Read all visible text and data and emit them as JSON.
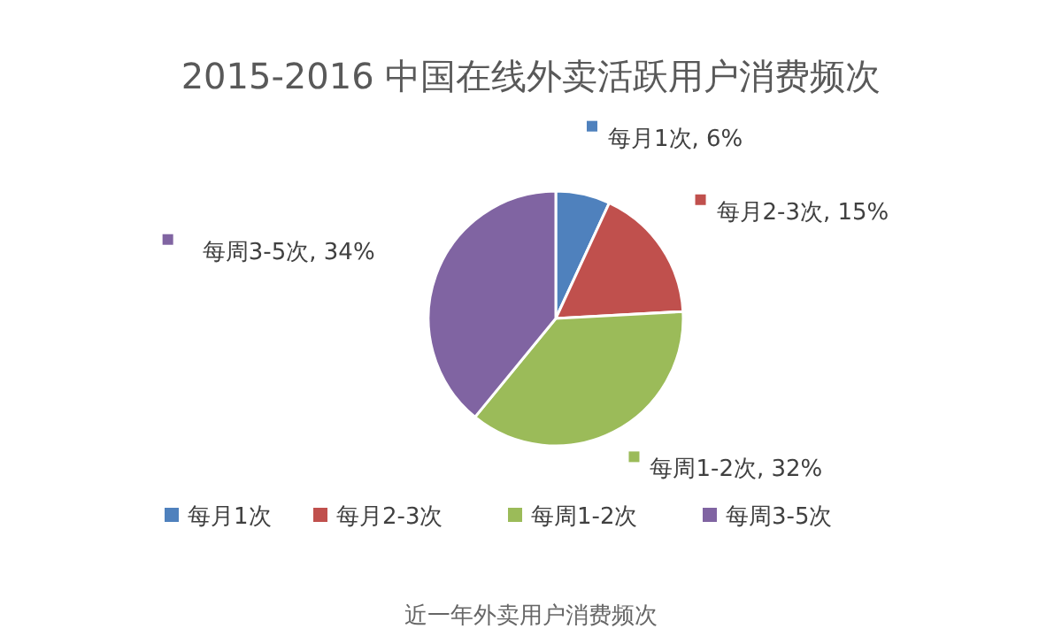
{
  "chart_data": {
    "type": "pie",
    "title": "2015-2016 中国在线外卖活跃用户消费频次",
    "categories": [
      "每月1次",
      "每月2-3次",
      "每周1-2次",
      "每周3-5次"
    ],
    "values": [
      6,
      15,
      32,
      34
    ],
    "value_labels": [
      "每月1次, 6%",
      "每月2-3次, 15%",
      "每周1-2次, 32%",
      "每周3-5次, 34%"
    ],
    "colors": [
      "#4f81bd",
      "#c0504d",
      "#9bbb59",
      "#8064a2"
    ],
    "legend": "bottom",
    "annotations": [
      "近一年外卖用户消费频次"
    ]
  }
}
